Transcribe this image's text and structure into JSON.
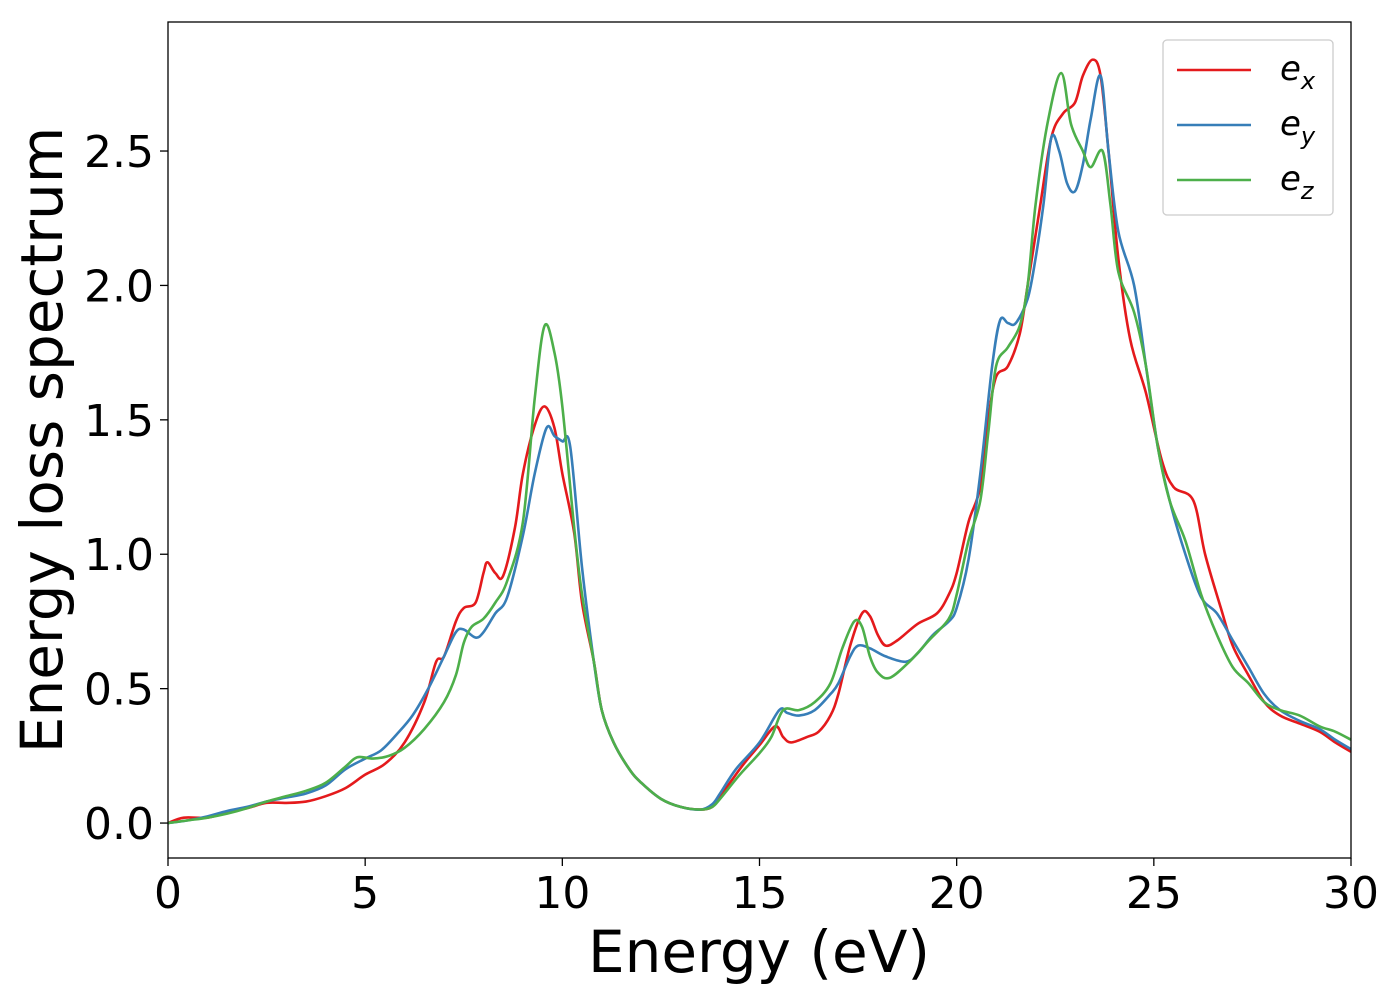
{
  "chart_data": {
    "type": "line",
    "title": "",
    "xlabel": "Energy (eV)",
    "ylabel": "Energy loss spectrum",
    "xlim": [
      0,
      30
    ],
    "ylim": [
      -0.13,
      2.98
    ],
    "xticks": [
      0,
      5,
      10,
      15,
      20,
      25,
      30
    ],
    "xtick_labels": [
      "0",
      "5",
      "10",
      "15",
      "20",
      "25",
      "30"
    ],
    "yticks": [
      0.0,
      0.5,
      1.0,
      1.5,
      2.0,
      2.5
    ],
    "ytick_labels": [
      "0.0",
      "0.5",
      "1.0",
      "1.5",
      "2.0",
      "2.5"
    ],
    "grid": false,
    "legend_position": "top-right",
    "series": [
      {
        "name": "e",
        "subscript": "x",
        "color": "#e41a1c",
        "points": [
          [
            0,
            0.0
          ],
          [
            0.4,
            0.02
          ],
          [
            1,
            0.02
          ],
          [
            1.5,
            0.04
          ],
          [
            2,
            0.055
          ],
          [
            2.5,
            0.075
          ],
          [
            3,
            0.075
          ],
          [
            3.5,
            0.08
          ],
          [
            4,
            0.1
          ],
          [
            4.5,
            0.13
          ],
          [
            5,
            0.18
          ],
          [
            5.5,
            0.22
          ],
          [
            6,
            0.3
          ],
          [
            6.5,
            0.45
          ],
          [
            6.8,
            0.6
          ],
          [
            7,
            0.62
          ],
          [
            7.3,
            0.75
          ],
          [
            7.5,
            0.8
          ],
          [
            7.8,
            0.82
          ],
          [
            8,
            0.93
          ],
          [
            8.1,
            0.97
          ],
          [
            8.3,
            0.93
          ],
          [
            8.5,
            0.92
          ],
          [
            8.8,
            1.1
          ],
          [
            9,
            1.3
          ],
          [
            9.3,
            1.48
          ],
          [
            9.55,
            1.55
          ],
          [
            9.8,
            1.47
          ],
          [
            10,
            1.3
          ],
          [
            10.3,
            1.08
          ],
          [
            10.5,
            0.82
          ],
          [
            10.8,
            0.6
          ],
          [
            11,
            0.42
          ],
          [
            11.3,
            0.3
          ],
          [
            11.7,
            0.2
          ],
          [
            12,
            0.15
          ],
          [
            12.5,
            0.09
          ],
          [
            13,
            0.06
          ],
          [
            13.5,
            0.05
          ],
          [
            13.8,
            0.06
          ],
          [
            14,
            0.1
          ],
          [
            14.3,
            0.16
          ],
          [
            14.6,
            0.22
          ],
          [
            15,
            0.29
          ],
          [
            15.4,
            0.36
          ],
          [
            15.6,
            0.32
          ],
          [
            15.8,
            0.3
          ],
          [
            16.2,
            0.32
          ],
          [
            16.5,
            0.34
          ],
          [
            16.8,
            0.4
          ],
          [
            17,
            0.48
          ],
          [
            17.3,
            0.66
          ],
          [
            17.6,
            0.78
          ],
          [
            17.8,
            0.77
          ],
          [
            18,
            0.7
          ],
          [
            18.2,
            0.66
          ],
          [
            18.5,
            0.68
          ],
          [
            19,
            0.74
          ],
          [
            19.5,
            0.78
          ],
          [
            19.8,
            0.85
          ],
          [
            20,
            0.93
          ],
          [
            20.3,
            1.12
          ],
          [
            20.6,
            1.25
          ],
          [
            20.8,
            1.5
          ],
          [
            21,
            1.66
          ],
          [
            21.3,
            1.7
          ],
          [
            21.6,
            1.82
          ],
          [
            21.8,
            2.0
          ],
          [
            22.1,
            2.28
          ],
          [
            22.4,
            2.55
          ],
          [
            22.7,
            2.64
          ],
          [
            23,
            2.68
          ],
          [
            23.2,
            2.78
          ],
          [
            23.45,
            2.84
          ],
          [
            23.65,
            2.78
          ],
          [
            23.85,
            2.5
          ],
          [
            24.1,
            2.1
          ],
          [
            24.4,
            1.8
          ],
          [
            24.8,
            1.6
          ],
          [
            25.2,
            1.35
          ],
          [
            25.5,
            1.25
          ],
          [
            26,
            1.2
          ],
          [
            26.3,
            1.0
          ],
          [
            26.7,
            0.8
          ],
          [
            27,
            0.66
          ],
          [
            27.4,
            0.55
          ],
          [
            27.8,
            0.45
          ],
          [
            28.2,
            0.4
          ],
          [
            28.7,
            0.37
          ],
          [
            29.2,
            0.34
          ],
          [
            29.6,
            0.3
          ],
          [
            30,
            0.265
          ]
        ]
      },
      {
        "name": "e",
        "subscript": "y",
        "color": "#377eb8",
        "points": [
          [
            0,
            0.0
          ],
          [
            0.5,
            0.01
          ],
          [
            1,
            0.025
          ],
          [
            1.5,
            0.045
          ],
          [
            2,
            0.06
          ],
          [
            2.5,
            0.08
          ],
          [
            3,
            0.095
          ],
          [
            3.5,
            0.11
          ],
          [
            4,
            0.14
          ],
          [
            4.5,
            0.2
          ],
          [
            5,
            0.24
          ],
          [
            5.4,
            0.27
          ],
          [
            5.8,
            0.33
          ],
          [
            6.2,
            0.4
          ],
          [
            6.6,
            0.5
          ],
          [
            7,
            0.62
          ],
          [
            7.3,
            0.71
          ],
          [
            7.5,
            0.72
          ],
          [
            7.8,
            0.69
          ],
          [
            8,
            0.71
          ],
          [
            8.3,
            0.78
          ],
          [
            8.6,
            0.84
          ],
          [
            9,
            1.07
          ],
          [
            9.3,
            1.3
          ],
          [
            9.6,
            1.47
          ],
          [
            9.8,
            1.44
          ],
          [
            10,
            1.42
          ],
          [
            10.2,
            1.4
          ],
          [
            10.5,
            0.95
          ],
          [
            10.8,
            0.6
          ],
          [
            11,
            0.42
          ],
          [
            11.3,
            0.3
          ],
          [
            11.7,
            0.2
          ],
          [
            12,
            0.15
          ],
          [
            12.5,
            0.09
          ],
          [
            13,
            0.06
          ],
          [
            13.5,
            0.05
          ],
          [
            13.8,
            0.07
          ],
          [
            14,
            0.11
          ],
          [
            14.4,
            0.2
          ],
          [
            15,
            0.3
          ],
          [
            15.5,
            0.42
          ],
          [
            15.7,
            0.41
          ],
          [
            16,
            0.4
          ],
          [
            16.4,
            0.42
          ],
          [
            16.8,
            0.48
          ],
          [
            17,
            0.52
          ],
          [
            17.3,
            0.62
          ],
          [
            17.5,
            0.66
          ],
          [
            17.8,
            0.65
          ],
          [
            18.2,
            0.62
          ],
          [
            18.7,
            0.6
          ],
          [
            19,
            0.63
          ],
          [
            19.4,
            0.7
          ],
          [
            19.8,
            0.75
          ],
          [
            20,
            0.8
          ],
          [
            20.3,
            0.98
          ],
          [
            20.6,
            1.3
          ],
          [
            20.9,
            1.7
          ],
          [
            21.1,
            1.87
          ],
          [
            21.3,
            1.86
          ],
          [
            21.5,
            1.86
          ],
          [
            21.8,
            1.95
          ],
          [
            22,
            2.1
          ],
          [
            22.2,
            2.3
          ],
          [
            22.4,
            2.55
          ],
          [
            22.6,
            2.5
          ],
          [
            22.8,
            2.38
          ],
          [
            23,
            2.35
          ],
          [
            23.2,
            2.45
          ],
          [
            23.4,
            2.62
          ],
          [
            23.65,
            2.78
          ],
          [
            23.85,
            2.5
          ],
          [
            24.1,
            2.2
          ],
          [
            24.5,
            2.0
          ],
          [
            24.8,
            1.7
          ],
          [
            25.1,
            1.4
          ],
          [
            25.4,
            1.2
          ],
          [
            25.8,
            1.0
          ],
          [
            26.2,
            0.84
          ],
          [
            26.6,
            0.78
          ],
          [
            27,
            0.68
          ],
          [
            27.4,
            0.58
          ],
          [
            27.8,
            0.48
          ],
          [
            28.2,
            0.42
          ],
          [
            28.7,
            0.38
          ],
          [
            29.2,
            0.35
          ],
          [
            29.6,
            0.31
          ],
          [
            30,
            0.275
          ]
        ]
      },
      {
        "name": "e",
        "subscript": "z",
        "color": "#4daf4a",
        "points": [
          [
            0,
            0.0
          ],
          [
            0.5,
            0.01
          ],
          [
            1,
            0.02
          ],
          [
            1.5,
            0.035
          ],
          [
            2,
            0.055
          ],
          [
            2.5,
            0.08
          ],
          [
            3,
            0.1
          ],
          [
            3.5,
            0.12
          ],
          [
            4,
            0.15
          ],
          [
            4.5,
            0.21
          ],
          [
            4.8,
            0.245
          ],
          [
            5.2,
            0.24
          ],
          [
            5.6,
            0.25
          ],
          [
            6,
            0.28
          ],
          [
            6.5,
            0.35
          ],
          [
            7,
            0.45
          ],
          [
            7.3,
            0.55
          ],
          [
            7.5,
            0.67
          ],
          [
            7.7,
            0.73
          ],
          [
            8,
            0.76
          ],
          [
            8.3,
            0.82
          ],
          [
            8.6,
            0.9
          ],
          [
            9,
            1.12
          ],
          [
            9.3,
            1.58
          ],
          [
            9.55,
            1.85
          ],
          [
            9.8,
            1.75
          ],
          [
            10,
            1.55
          ],
          [
            10.3,
            1.1
          ],
          [
            10.5,
            0.85
          ],
          [
            10.8,
            0.6
          ],
          [
            11,
            0.42
          ],
          [
            11.3,
            0.3
          ],
          [
            11.7,
            0.2
          ],
          [
            12,
            0.15
          ],
          [
            12.5,
            0.09
          ],
          [
            13,
            0.06
          ],
          [
            13.5,
            0.05
          ],
          [
            13.8,
            0.06
          ],
          [
            14,
            0.09
          ],
          [
            14.5,
            0.18
          ],
          [
            15,
            0.26
          ],
          [
            15.3,
            0.32
          ],
          [
            15.6,
            0.42
          ],
          [
            16,
            0.42
          ],
          [
            16.4,
            0.45
          ],
          [
            16.8,
            0.52
          ],
          [
            17.1,
            0.65
          ],
          [
            17.4,
            0.75
          ],
          [
            17.6,
            0.73
          ],
          [
            17.8,
            0.62
          ],
          [
            18,
            0.56
          ],
          [
            18.3,
            0.54
          ],
          [
            18.8,
            0.6
          ],
          [
            19.3,
            0.68
          ],
          [
            19.8,
            0.76
          ],
          [
            20,
            0.85
          ],
          [
            20.3,
            1.05
          ],
          [
            20.6,
            1.2
          ],
          [
            20.8,
            1.45
          ],
          [
            21,
            1.7
          ],
          [
            21.3,
            1.77
          ],
          [
            21.6,
            1.85
          ],
          [
            21.8,
            2.0
          ],
          [
            22,
            2.3
          ],
          [
            22.3,
            2.6
          ],
          [
            22.65,
            2.79
          ],
          [
            22.9,
            2.6
          ],
          [
            23.2,
            2.5
          ],
          [
            23.4,
            2.44
          ],
          [
            23.7,
            2.5
          ],
          [
            23.9,
            2.3
          ],
          [
            24.1,
            2.05
          ],
          [
            24.5,
            1.9
          ],
          [
            24.8,
            1.7
          ],
          [
            25.1,
            1.4
          ],
          [
            25.4,
            1.2
          ],
          [
            25.8,
            1.05
          ],
          [
            26.2,
            0.85
          ],
          [
            26.6,
            0.7
          ],
          [
            27,
            0.58
          ],
          [
            27.4,
            0.52
          ],
          [
            27.8,
            0.45
          ],
          [
            28.2,
            0.42
          ],
          [
            28.7,
            0.4
          ],
          [
            29.2,
            0.36
          ],
          [
            29.6,
            0.34
          ],
          [
            30,
            0.31
          ]
        ]
      }
    ]
  }
}
